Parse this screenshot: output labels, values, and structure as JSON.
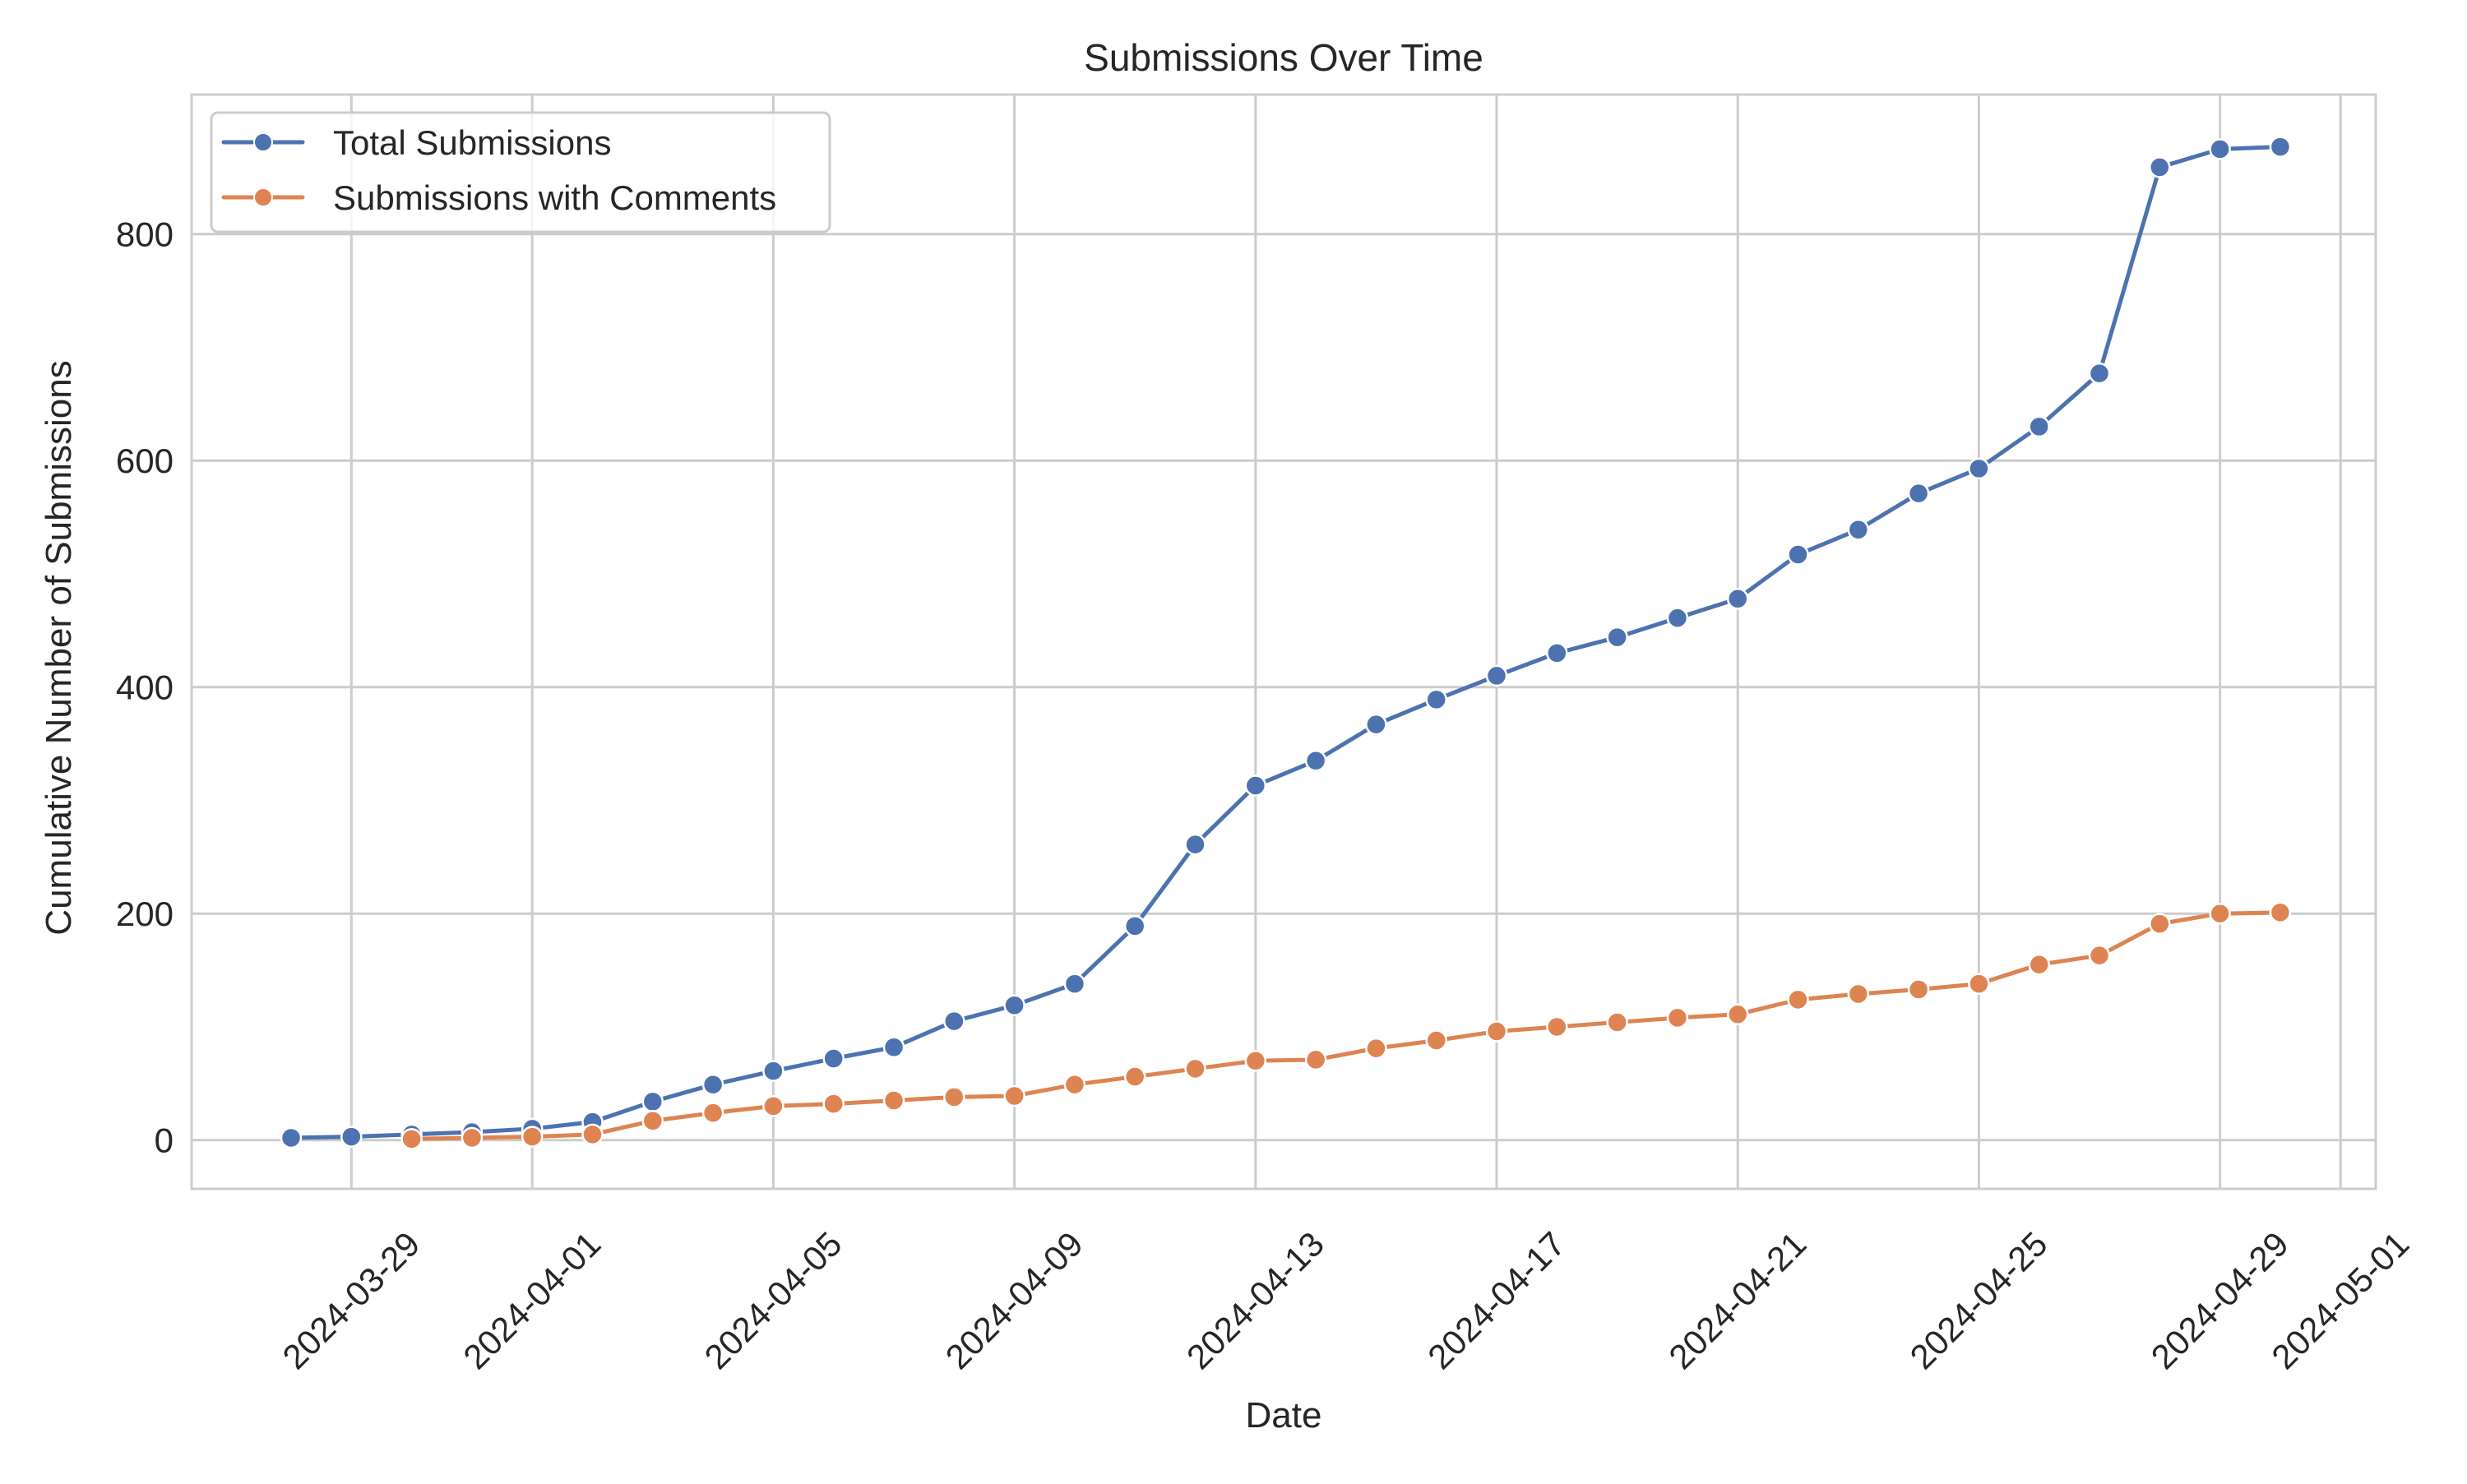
{
  "chart_data": {
    "type": "line",
    "title": "Submissions Over Time",
    "xlabel": "Date",
    "ylabel": "Cumulative Number of Submissions",
    "x": [
      "2024-03-28",
      "2024-03-29",
      "2024-03-30",
      "2024-03-31",
      "2024-04-01",
      "2024-04-02",
      "2024-04-03",
      "2024-04-04",
      "2024-04-05",
      "2024-04-06",
      "2024-04-07",
      "2024-04-08",
      "2024-04-09",
      "2024-04-10",
      "2024-04-11",
      "2024-04-12",
      "2024-04-13",
      "2024-04-14",
      "2024-04-15",
      "2024-04-16",
      "2024-04-17",
      "2024-04-18",
      "2024-04-19",
      "2024-04-20",
      "2024-04-21",
      "2024-04-22",
      "2024-04-23",
      "2024-04-24",
      "2024-04-25",
      "2024-04-26",
      "2024-04-27",
      "2024-04-28",
      "2024-04-29",
      "2024-04-30"
    ],
    "series": [
      {
        "name": "Total Submissions",
        "color": "#4c72b0",
        "marker": "o",
        "values": [
          2,
          3,
          5,
          7,
          10,
          16,
          34,
          49,
          61,
          72,
          82,
          105,
          119,
          138,
          189,
          261,
          313,
          335,
          367,
          389,
          410,
          430,
          444,
          461,
          478,
          517,
          539,
          571,
          593,
          630,
          677,
          859,
          875,
          877
        ]
      },
      {
        "name": "Submissions with Comments",
        "color": "#dd8452",
        "marker": "o",
        "start_index": 2,
        "values": [
          null,
          null,
          1,
          2,
          3,
          5,
          17,
          24,
          30,
          32,
          35,
          38,
          39,
          49,
          56,
          63,
          70,
          71,
          81,
          88,
          96,
          100,
          104,
          108,
          111,
          124,
          129,
          133,
          138,
          155,
          163,
          191,
          200,
          201
        ]
      }
    ],
    "yticks": [
      0,
      200,
      400,
      600,
      800
    ],
    "xtick_labels": [
      "2024-03-29",
      "2024-04-01",
      "2024-04-05",
      "2024-04-09",
      "2024-04-13",
      "2024-04-17",
      "2024-04-21",
      "2024-04-25",
      "2024-04-29",
      "2024-05-01"
    ],
    "xtick_day_index": [
      1,
      4,
      8,
      12,
      16,
      20,
      24,
      28,
      32,
      34
    ],
    "ylim": [
      -43,
      922
    ],
    "xlim_day_index": [
      -1.65,
      34.6
    ],
    "grid": true,
    "legend_position": "upper left",
    "x_tick_rotation": 45
  },
  "colors": {
    "grid": "#cccccc",
    "frame": "#cccccc",
    "text": "#262626",
    "background": "#ffffff"
  }
}
